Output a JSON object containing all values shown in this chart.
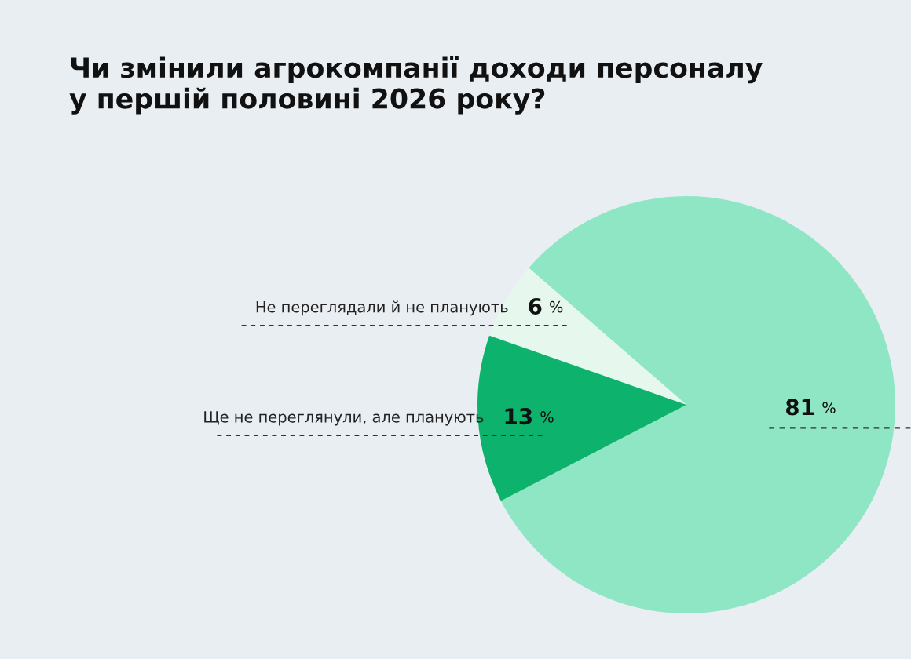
{
  "chart_data": {
    "type": "pie",
    "title": "Чи змінили агрокомпанії доходи персоналу\nу першій половині 2026 року?",
    "categories": [
      null,
      "Не переглядали й не планують",
      "Ще не переглянули, але планують"
    ],
    "values": [
      81,
      6,
      13
    ],
    "colors": [
      "#8ee6c4",
      "#e6f8ee",
      "#0db36d"
    ],
    "value_labels": [
      "81 %",
      "6 %",
      "13 %"
    ],
    "legend": false
  }
}
